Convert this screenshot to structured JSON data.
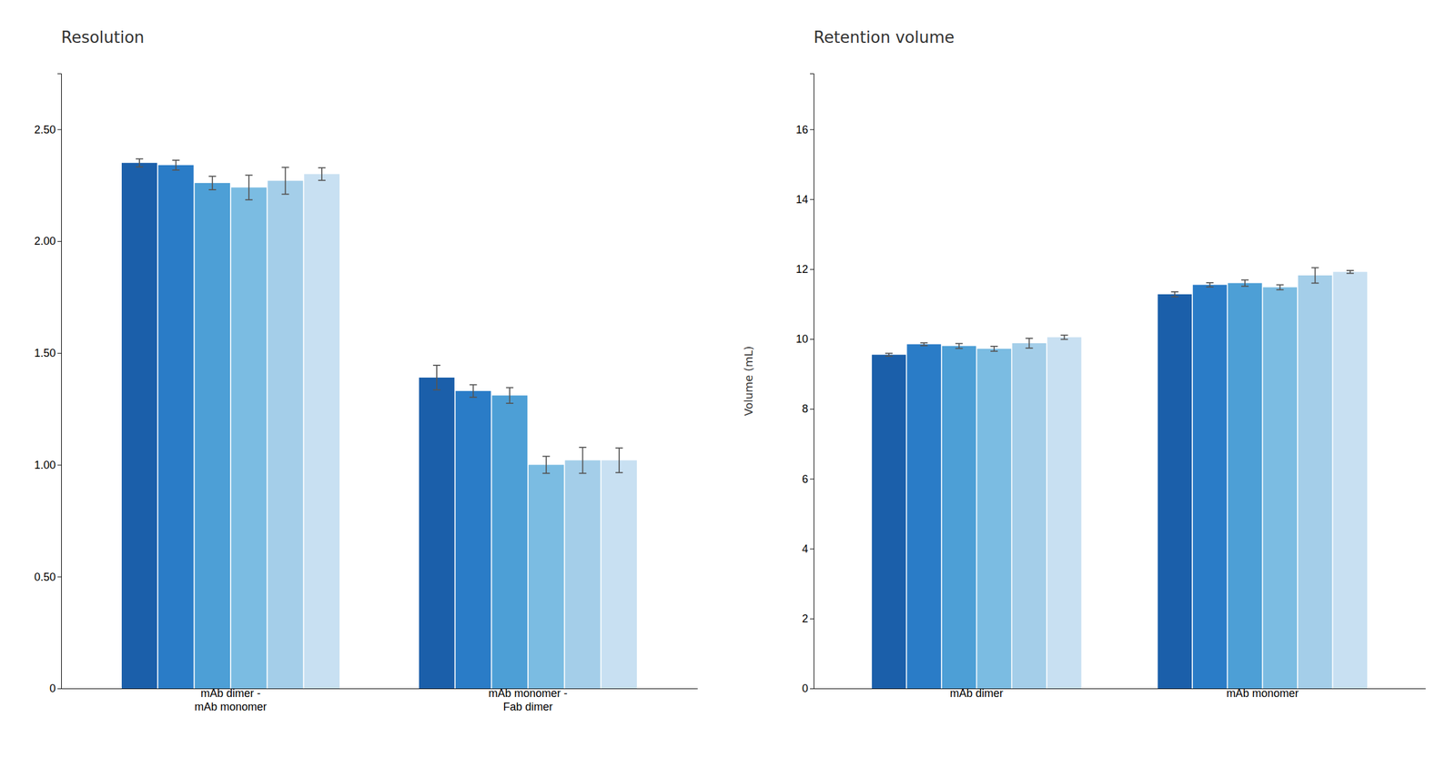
{
  "chart_data": [
    {
      "type": "bar",
      "title": "Resolution",
      "categories": [
        "mAb dimer -\nmAb monomer",
        "mAb monomer -\nFab dimer"
      ],
      "series": [
        {
          "color": "#1b5faa",
          "values": [
            2.35,
            1.39
          ],
          "errors": [
            0.018,
            0.055
          ]
        },
        {
          "color": "#2a7cc7",
          "values": [
            2.34,
            1.33
          ],
          "errors": [
            0.022,
            0.028
          ]
        },
        {
          "color": "#4d9fd6",
          "values": [
            2.26,
            1.31
          ],
          "errors": [
            0.03,
            0.035
          ]
        },
        {
          "color": "#7bbce2",
          "values": [
            2.24,
            1.0
          ],
          "errors": [
            0.055,
            0.038
          ]
        },
        {
          "color": "#a4cee9",
          "values": [
            2.27,
            1.02
          ],
          "errors": [
            0.06,
            0.058
          ]
        },
        {
          "color": "#c8e0f2",
          "values": [
            2.3,
            1.02
          ],
          "errors": [
            0.028,
            0.055
          ]
        }
      ],
      "ylim": [
        0,
        2.75
      ],
      "yticks": [
        0,
        {
          "value": 0.5,
          "label": "0.50"
        },
        {
          "value": 1.0,
          "label": "1.00"
        },
        {
          "value": 1.5,
          "label": "1.50"
        },
        {
          "value": 2.0,
          "label": "2.00"
        },
        {
          "value": 2.5,
          "label": "2.50"
        }
      ],
      "grid": false
    },
    {
      "type": "bar",
      "title": "Retention volume",
      "y_label": "Volume (mL)",
      "categories": [
        "mAb dimer",
        "mAb monomer"
      ],
      "series": [
        {
          "color": "#1b5faa",
          "values": [
            9.55,
            11.28
          ],
          "errors": [
            0.04,
            0.07
          ]
        },
        {
          "color": "#2a7cc7",
          "values": [
            9.85,
            11.55
          ],
          "errors": [
            0.04,
            0.06
          ]
        },
        {
          "color": "#4d9fd6",
          "values": [
            9.8,
            11.6
          ],
          "errors": [
            0.07,
            0.09
          ]
        },
        {
          "color": "#7bbce2",
          "values": [
            9.72,
            11.48
          ],
          "errors": [
            0.07,
            0.07
          ]
        },
        {
          "color": "#a4cee9",
          "values": [
            9.88,
            11.82
          ],
          "errors": [
            0.14,
            0.22
          ]
        },
        {
          "color": "#c8e0f2",
          "values": [
            10.05,
            11.92
          ],
          "errors": [
            0.06,
            0.04
          ]
        }
      ],
      "ylim": [
        0,
        17.6
      ],
      "yticks": [
        0,
        2,
        4,
        6,
        8,
        10,
        12,
        14,
        16
      ],
      "grid": false
    }
  ]
}
